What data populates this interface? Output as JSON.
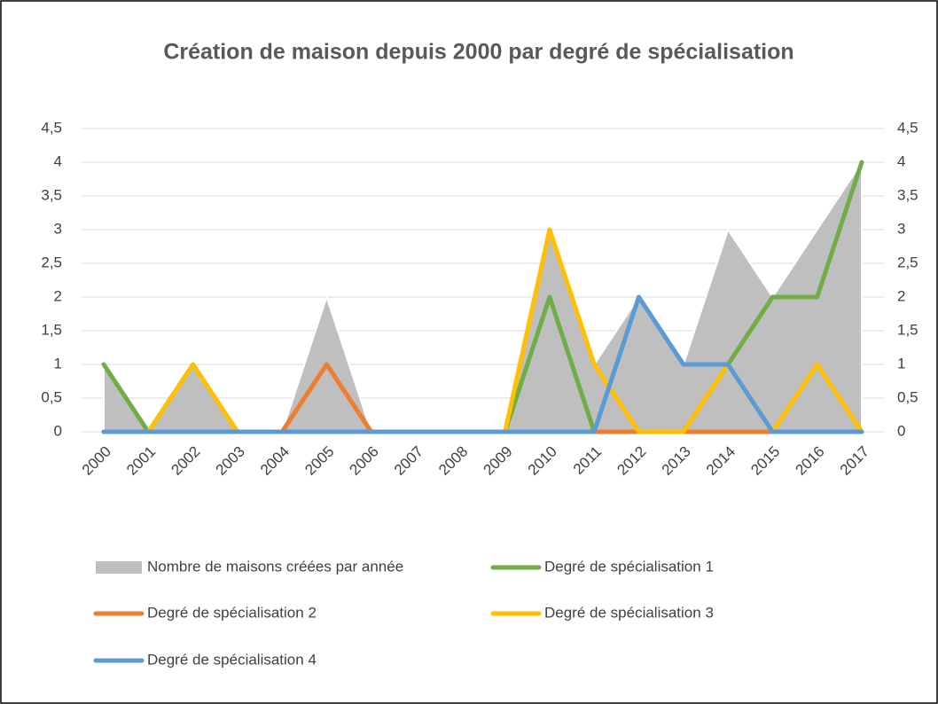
{
  "chart_data": {
    "type": "area-line",
    "title": "Création de maison depuis 2000 par degré de spécialisation",
    "categories": [
      "2000",
      "2001",
      "2002",
      "2003",
      "2004",
      "2005",
      "2006",
      "2007",
      "2008",
      "2009",
      "2010",
      "2011",
      "2012",
      "2013",
      "2014",
      "2015",
      "2016",
      "2017"
    ],
    "series": [
      {
        "name": "Nombre de maisons créées par année",
        "type": "area",
        "color": "#bfbfbf",
        "values": [
          1,
          0,
          1,
          0,
          0,
          2,
          0,
          0,
          0,
          0,
          3,
          1,
          2,
          1,
          3,
          2,
          3,
          4
        ]
      },
      {
        "name": "Degré de spécialisation 1",
        "type": "line",
        "axis": "y2",
        "color": "#70ad47",
        "values": [
          1,
          0,
          0,
          0,
          0,
          0,
          0,
          0,
          0,
          0,
          2,
          0,
          0,
          0,
          1,
          2,
          2,
          4
        ]
      },
      {
        "name": "Degré de spécialisation 2",
        "type": "line",
        "axis": "y2",
        "color": "#ed7d31",
        "values": [
          0,
          0,
          0,
          0,
          0,
          1,
          0,
          0,
          0,
          0,
          0,
          0,
          0,
          0,
          0,
          0,
          0,
          0
        ]
      },
      {
        "name": "Degré de spécialisation 3",
        "type": "line",
        "axis": "y2",
        "color": "#ffc000",
        "values": [
          0,
          0,
          1,
          0,
          0,
          0,
          0,
          0,
          0,
          0,
          3,
          1,
          0,
          0,
          1,
          0,
          1,
          0
        ]
      },
      {
        "name": "Degré de spécialisation 4",
        "type": "line",
        "axis": "y2",
        "color": "#5b9bd5",
        "values": [
          0,
          0,
          0,
          0,
          0,
          0,
          0,
          0,
          0,
          0,
          0,
          0,
          2,
          1,
          1,
          0,
          0,
          0
        ]
      }
    ],
    "ylim": [
      0,
      4.5
    ],
    "yticks": [
      0,
      {
        "value": 0.5,
        "label": "0,5"
      },
      1,
      {
        "value": 1.5,
        "label": "1,5"
      },
      2,
      {
        "value": 2.5,
        "label": "2,5"
      },
      3,
      {
        "value": 3.5,
        "label": "3,5"
      },
      4,
      {
        "value": 4.5,
        "label": "4,5"
      }
    ],
    "y2lim": [
      0,
      4.5
    ],
    "y2ticks": [
      0,
      {
        "value": 0.5,
        "label": "0,5"
      },
      1,
      {
        "value": 1.5,
        "label": "1,5"
      },
      2,
      {
        "value": 2.5,
        "label": "2,5"
      },
      3,
      {
        "value": 3.5,
        "label": "3,5"
      },
      4,
      {
        "value": 4.5,
        "label": "4,5"
      }
    ],
    "grid": true,
    "legend": "bottom"
  }
}
